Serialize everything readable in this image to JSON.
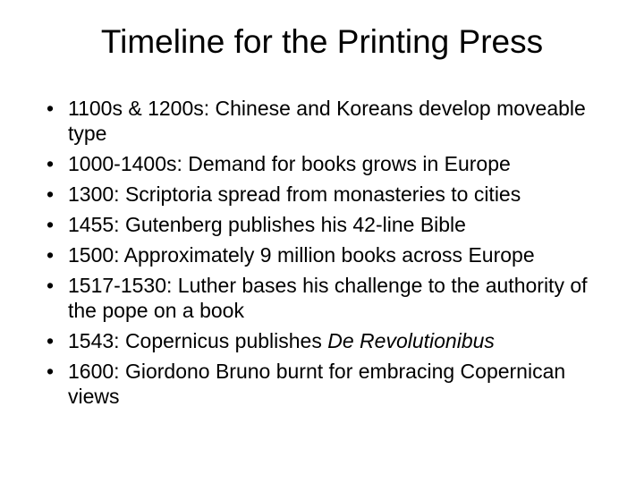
{
  "slide": {
    "background_color": "#ffffff",
    "text_color": "#000000",
    "font_family": "Arial",
    "title": {
      "text": "Timeline for the Printing Press",
      "fontsize": 37,
      "weight": 400,
      "align": "center"
    },
    "bullets": {
      "fontsize": 23,
      "marker": "•",
      "items": [
        {
          "text": "1100s & 1200s: Chinese and Koreans develop moveable type"
        },
        {
          "text": "1000-1400s: Demand for books grows in Europe"
        },
        {
          "text": "1300: Scriptoria spread from monasteries to cities"
        },
        {
          "text": "1455: Gutenberg publishes his 42-line Bible"
        },
        {
          "text": "1500: Approximately 9 million books across Europe"
        },
        {
          "text": "1517-1530: Luther bases his challenge to the authority of the pope on a book"
        },
        {
          "text_pre": "1543: Copernicus publishes ",
          "text_italic": "De Revolutionibus"
        },
        {
          "text": "1600: Giordono Bruno burnt for embracing Copernican views"
        }
      ]
    }
  }
}
